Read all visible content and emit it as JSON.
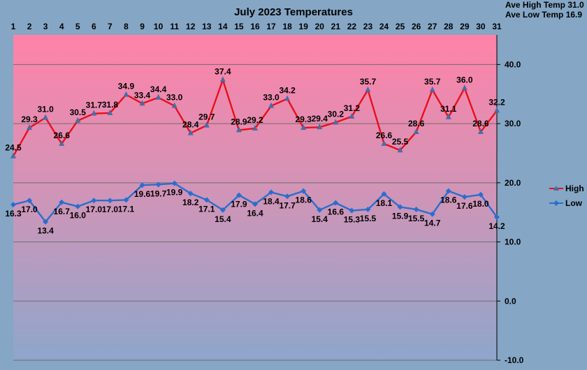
{
  "chart_data": {
    "type": "line",
    "title": "July 2023 Temperatures",
    "xlabel": "",
    "ylabel": "",
    "ylim": [
      -10,
      45
    ],
    "y_ticks": [
      "-10.0",
      "0.0",
      "10.0",
      "20.0",
      "30.0",
      "40.0"
    ],
    "grid": true,
    "legend_position": "right",
    "x_position": "top",
    "y_position": "right",
    "categories": [
      "1",
      "2",
      "3",
      "4",
      "5",
      "6",
      "7",
      "8",
      "9",
      "10",
      "11",
      "12",
      "13",
      "14",
      "15",
      "16",
      "17",
      "18",
      "19",
      "20",
      "21",
      "22",
      "23",
      "24",
      "25",
      "26",
      "27",
      "28",
      "29",
      "30",
      "31"
    ],
    "series": [
      {
        "name": "High",
        "color": "#e8101a",
        "marker": "triangle",
        "values": [
          24.5,
          29.3,
          31.0,
          26.6,
          30.5,
          31.7,
          31.8,
          34.9,
          33.4,
          34.4,
          33.0,
          28.4,
          29.7,
          37.4,
          28.9,
          29.2,
          33.0,
          34.2,
          29.3,
          29.4,
          30.2,
          31.2,
          35.7,
          26.6,
          25.5,
          28.6,
          35.7,
          31.1,
          36.0,
          28.6,
          32.2
        ]
      },
      {
        "name": "Low",
        "color": "#2b6ecc",
        "marker": "diamond",
        "values": [
          16.3,
          17.0,
          13.4,
          16.7,
          16.0,
          17.0,
          17.0,
          17.1,
          19.6,
          19.7,
          19.9,
          18.2,
          17.1,
          15.4,
          17.9,
          16.4,
          18.4,
          17.7,
          18.6,
          15.4,
          16.6,
          15.3,
          15.5,
          18.1,
          15.9,
          15.5,
          14.7,
          18.6,
          17.6,
          18.0,
          14.2
        ]
      }
    ],
    "summary": [
      {
        "label": "Ave High Temp",
        "value": "31.0"
      },
      {
        "label": "Ave Low Temp",
        "value": "16.9"
      }
    ]
  }
}
